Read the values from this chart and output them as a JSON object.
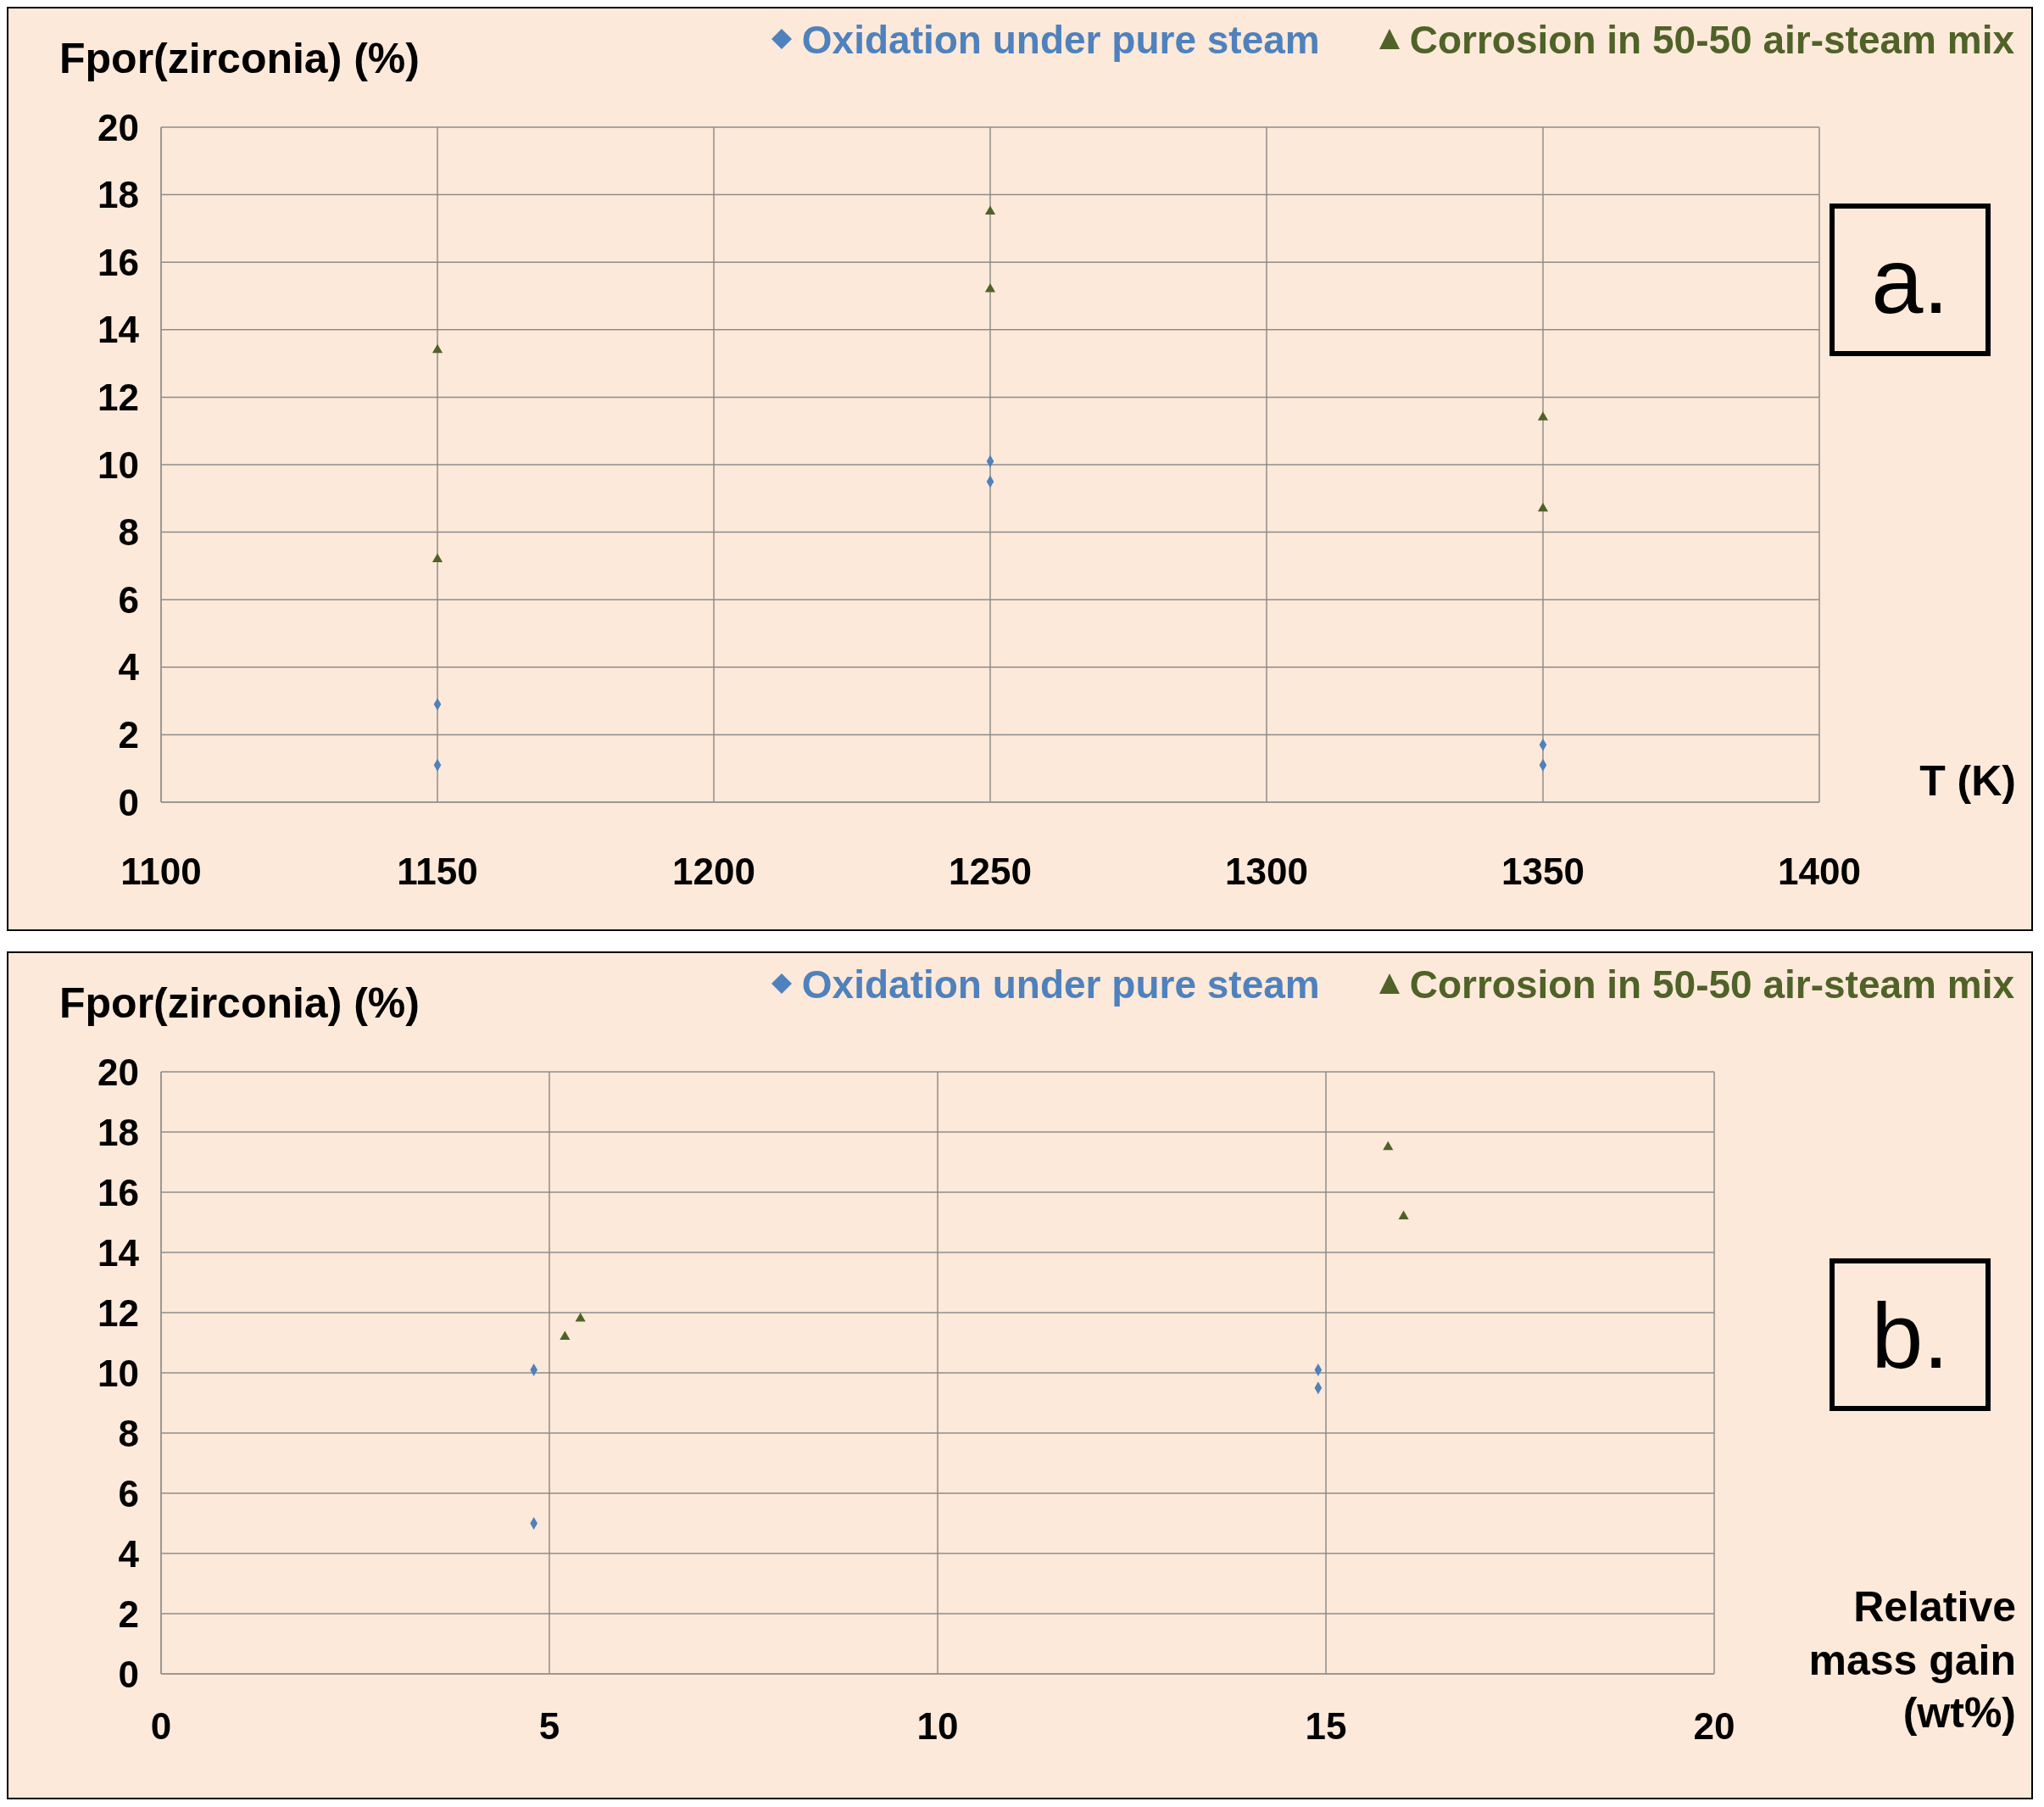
{
  "chart_data": [
    {
      "type": "scatter",
      "ylabel": "Fpor(zirconia) (%)",
      "xlabel": "T (K)",
      "annotations": [
        "a."
      ],
      "xlim": [
        1100,
        1400
      ],
      "xticks": [
        1100,
        1150,
        1200,
        1250,
        1300,
        1350,
        1400
      ],
      "ylim": [
        0,
        20
      ],
      "yticks": [
        0,
        2,
        4,
        6,
        8,
        10,
        12,
        14,
        16,
        18,
        20
      ],
      "grid": true,
      "legend": "top right",
      "series": [
        {
          "name": "Oxidation under pure steam",
          "color": "#4f81bd",
          "marker": "diamond",
          "x": [
            1150,
            1150,
            1250,
            1250,
            1350,
            1350
          ],
          "values": [
            2.9,
            1.1,
            10.1,
            9.5,
            1.7,
            1.1
          ]
        },
        {
          "name": "Corrosion in 50-50 air-steam mix",
          "color": "#4f6228",
          "marker": "triangle",
          "x": [
            1150,
            1150,
            1250,
            1250,
            1350,
            1350
          ],
          "values": [
            13.4,
            7.2,
            17.5,
            15.2,
            11.4,
            8.7
          ]
        }
      ]
    },
    {
      "type": "scatter",
      "ylabel": "Fpor(zirconia) (%)",
      "xlabel": "Relative mass gain (wt%)",
      "annotations": [
        "b."
      ],
      "xlim": [
        0,
        20
      ],
      "xticks": [
        0,
        5,
        10,
        15,
        20
      ],
      "ylim": [
        0,
        20
      ],
      "yticks": [
        0,
        2,
        4,
        6,
        8,
        10,
        12,
        14,
        16,
        18,
        20
      ],
      "grid": true,
      "legend": "top right",
      "series": [
        {
          "name": "Oxidation under pure steam",
          "color": "#4f81bd",
          "marker": "diamond",
          "x": [
            4.8,
            4.8,
            14.9,
            14.9
          ],
          "values": [
            10.1,
            5.0,
            10.1,
            9.5
          ]
        },
        {
          "name": "Corrosion in 50-50 air-steam mix",
          "color": "#4f6228",
          "marker": "triangle",
          "x": [
            5.2,
            5.4,
            15.8,
            16.0
          ],
          "values": [
            11.2,
            11.8,
            17.5,
            15.2
          ]
        }
      ]
    }
  ]
}
